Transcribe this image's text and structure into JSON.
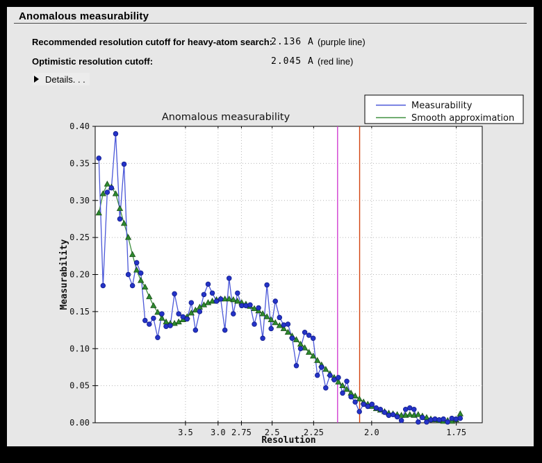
{
  "panel": {
    "title": "Anomalous measurability"
  },
  "summary": {
    "rows": [
      {
        "label": "Recommended resolution cutoff for heavy-atom search:",
        "value": "2.136 A",
        "note": "(purple line)"
      },
      {
        "label": "Optimistic resolution cutoff:",
        "value": "2.045 A",
        "note": "(red line)"
      }
    ],
    "details_label": "Details. . ."
  },
  "chart_data": {
    "type": "line",
    "title": "Anomalous measurability",
    "xlabel": "Resolution",
    "ylabel": "Measurability",
    "grid": true,
    "x_axis": {
      "scale": "inverse_d_squared",
      "max_inv_d_sq": 0.35,
      "ticks": [
        {
          "label": "3.5",
          "d": 3.5
        },
        {
          "label": "3.0",
          "d": 3.0
        },
        {
          "label": "2.75",
          "d": 2.75
        },
        {
          "label": "2.5",
          "d": 2.5
        },
        {
          "label": "2.25",
          "d": 2.25
        },
        {
          "label": "2.0",
          "d": 2.0
        },
        {
          "label": "1.75",
          "d": 1.75
        }
      ]
    },
    "y_axis": {
      "min": 0.0,
      "max": 0.4,
      "tick_step": 0.05
    },
    "x_start_inv_d_sq": 0.0033,
    "x_step_inv_d_sq": 0.0038,
    "legend": {
      "position": "top-right",
      "entries": [
        "Measurability",
        "Smooth approximation"
      ]
    },
    "vlines": [
      {
        "name": "purple line",
        "resolution": 2.136,
        "color": "#d23ed2"
      },
      {
        "name": "red line",
        "resolution": 2.045,
        "color": "#d2410e"
      }
    ],
    "series": [
      {
        "name": "Measurability",
        "marker": "circle",
        "line_color": "#4a57d8",
        "marker_color": "#2433c8",
        "marker_edge": "#141f8f",
        "values": [
          0.357,
          0.185,
          0.311,
          0.317,
          0.39,
          0.275,
          0.349,
          0.2,
          0.185,
          0.216,
          0.202,
          0.138,
          0.133,
          0.141,
          0.115,
          0.147,
          0.13,
          0.131,
          0.174,
          0.147,
          0.143,
          0.14,
          0.162,
          0.125,
          0.15,
          0.173,
          0.187,
          0.175,
          0.164,
          0.167,
          0.125,
          0.195,
          0.147,
          0.175,
          0.158,
          0.158,
          0.159,
          0.133,
          0.155,
          0.114,
          0.186,
          0.127,
          0.164,
          0.142,
          0.132,
          0.133,
          0.114,
          0.077,
          0.1,
          0.122,
          0.118,
          0.114,
          0.064,
          0.075,
          0.047,
          0.064,
          0.058,
          0.061,
          0.04,
          0.056,
          0.035,
          0.028,
          0.015,
          0.025,
          0.022,
          0.025,
          0.02,
          0.018,
          0.014,
          0.01,
          0.011,
          0.008,
          0.003,
          0.018,
          0.02,
          0.018,
          0.001,
          0.007,
          0.001,
          0.004,
          0.005,
          0.004,
          0.005,
          0.001,
          0.006,
          0.005,
          0.006
        ]
      },
      {
        "name": "Smooth approximation",
        "marker": "triangle",
        "line_color": "#3f8f3f",
        "marker_color": "#2e8b2e",
        "marker_edge": "#174d17",
        "values": [
          0.283,
          0.309,
          0.322,
          0.318,
          0.309,
          0.289,
          0.269,
          0.25,
          0.227,
          0.206,
          0.192,
          0.183,
          0.17,
          0.158,
          0.149,
          0.141,
          0.136,
          0.134,
          0.134,
          0.136,
          0.139,
          0.143,
          0.148,
          0.152,
          0.156,
          0.159,
          0.162,
          0.164,
          0.166,
          0.167,
          0.167,
          0.167,
          0.166,
          0.164,
          0.162,
          0.16,
          0.157,
          0.154,
          0.151,
          0.147,
          0.143,
          0.139,
          0.135,
          0.131,
          0.127,
          0.122,
          0.117,
          0.112,
          0.106,
          0.101,
          0.095,
          0.09,
          0.084,
          0.078,
          0.072,
          0.066,
          0.061,
          0.055,
          0.05,
          0.045,
          0.04,
          0.036,
          0.032,
          0.028,
          0.025,
          0.022,
          0.019,
          0.017,
          0.015,
          0.013,
          0.012,
          0.011,
          0.01,
          0.01,
          0.011,
          0.01,
          0.011,
          0.009,
          0.007,
          0.005,
          0.004,
          0.003,
          0.002,
          0.003,
          0.002,
          0.004,
          0.012
        ]
      }
    ],
    "colors": {
      "plot_background": "#ffffff",
      "panel_background": "#e7e7e7",
      "gridline": "#b5b5b5"
    }
  }
}
